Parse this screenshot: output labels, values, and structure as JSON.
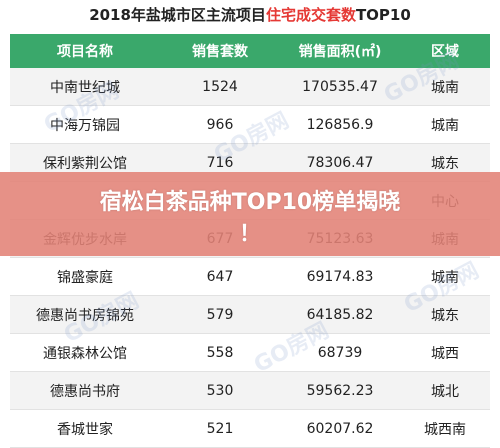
{
  "title": {
    "prefix": "2018年盐城市区主流项目",
    "highlight": "住宅成交套数",
    "suffix": "TOP10"
  },
  "columns": [
    "项目名称",
    "销售套数",
    "销售面积(㎡)",
    "区域"
  ],
  "rows": [
    [
      "中南世纪城",
      "1524",
      "170535.47",
      "城南"
    ],
    [
      "中海万锦园",
      "966",
      "126856.9",
      "城南"
    ],
    [
      "保利紫荆公馆",
      "716",
      "78306.47",
      "城东"
    ],
    [
      "",
      "",
      "",
      "中心"
    ],
    [
      "金辉优步水岸",
      "677",
      "75123.63",
      "城南"
    ],
    [
      "锦盛豪庭",
      "647",
      "69174.83",
      "城南"
    ],
    [
      "德惠尚书房锦苑",
      "579",
      "64185.82",
      "城东"
    ],
    [
      "通银森林公馆",
      "558",
      "68739",
      "城西"
    ],
    [
      "德惠尚书府",
      "530",
      "59562.23",
      "城北"
    ],
    [
      "香城世家",
      "521",
      "60207.62",
      "城西南"
    ]
  ],
  "banner": {
    "line1": "宿松白茶品种TOP10榜单揭晓",
    "line2": "！"
  },
  "watermark": "GO房网"
}
